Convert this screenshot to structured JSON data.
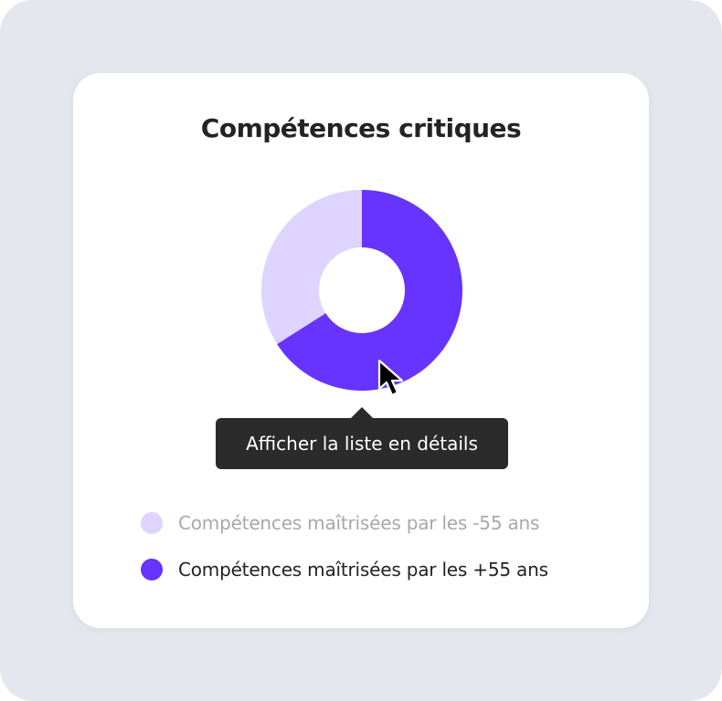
{
  "colors": {
    "background": "#e4e8ee",
    "card": "#ffffff",
    "series_light": "#ddd5ff",
    "series_dark": "#6633ff",
    "tooltip_bg": "#2b2b2b",
    "legend_muted_text": "#a8a8a8",
    "legend_text": "#232323"
  },
  "chart_data": {
    "type": "pie",
    "title": "Compétences critiques",
    "donut": true,
    "series": [
      {
        "name": "Compétences maîtrisées par les -55 ans",
        "value": 34,
        "color": "#ddd5ff",
        "state": "muted"
      },
      {
        "name": "Compétences maîtrisées par les +55 ans",
        "value": 66,
        "color": "#6633ff",
        "state": "active"
      }
    ],
    "tooltip": "Afficher la liste en détails",
    "legend_position": "bottom"
  },
  "cursor": {
    "icon": "arrow-cursor-icon"
  }
}
